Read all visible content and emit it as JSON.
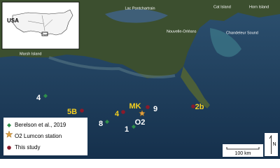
{
  "inset": {
    "label": "USA"
  },
  "places": [
    "Lac Pontchartrain",
    "Cat Island",
    "Horn Island",
    "Nouvelle-Orléans",
    "Chandeleur Sound",
    "Marsh Island"
  ],
  "stations": [
    "4",
    "5B",
    "4",
    "MK",
    "9",
    "2b",
    "8",
    "O2",
    "1"
  ],
  "legend": [
    "Berelson et al., 2019",
    "O2 Lumcon station",
    "This study"
  ],
  "scale_bar": "100 km",
  "north": "N"
}
